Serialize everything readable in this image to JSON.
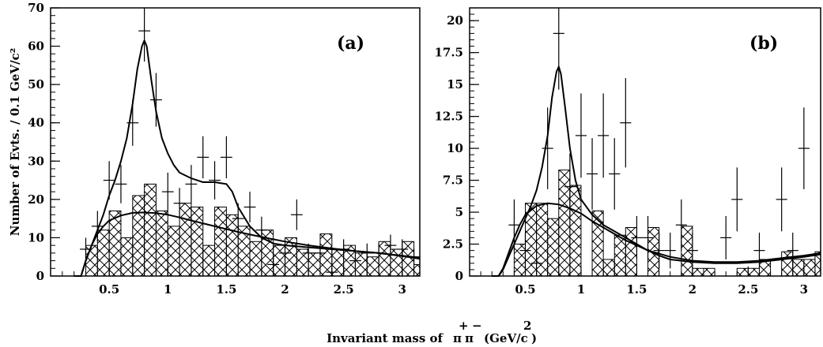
{
  "figure": {
    "ylabel": "Number of Evts. / 0.1 GeV/c²",
    "xlabel_prefix": "Invariant mass of",
    "xlabel_particle_plus": "+",
    "xlabel_particle_minus": "−",
    "xlabel_pi1": "π",
    "xlabel_pi2": "π",
    "xlabel_units": "(GeV/c",
    "xlabel_units_sup": "2",
    "xlabel_units_close": ")"
  },
  "chart_data": [
    {
      "type": "histogram",
      "panel_label": "(a)",
      "xlim": [
        0.0,
        3.15
      ],
      "ylim": [
        0,
        70
      ],
      "x_ticks": [
        "0.5",
        "1",
        "1.5",
        "2",
        "2.5",
        "3"
      ],
      "x_tick_values": [
        0.5,
        1,
        1.5,
        2,
        2.5,
        3
      ],
      "y_ticks": [
        "0",
        "10",
        "20",
        "30",
        "40",
        "50",
        "60",
        "70"
      ],
      "y_tick_values": [
        0,
        10,
        20,
        30,
        40,
        50,
        60,
        70
      ],
      "background_hist": {
        "bin_edges": [
          0.3,
          0.4,
          0.5,
          0.6,
          0.7,
          0.8,
          0.9,
          1.0,
          1.1,
          1.2,
          1.3,
          1.4,
          1.5,
          1.6,
          1.7,
          1.8,
          1.9,
          2.0,
          2.1,
          2.2,
          2.3,
          2.4,
          2.5,
          2.6,
          2.7,
          2.8,
          2.9,
          3.0,
          3.1,
          3.15
        ],
        "values": [
          8,
          12,
          17,
          10,
          21,
          24,
          17,
          13,
          19,
          18,
          8,
          18,
          16,
          13,
          9,
          12,
          8,
          10,
          7,
          6,
          11,
          7,
          8,
          6,
          5,
          9,
          7,
          9,
          3
        ]
      },
      "data_points": {
        "x": [
          0.3,
          0.4,
          0.5,
          0.6,
          0.7,
          0.8,
          0.9,
          1.0,
          1.1,
          1.2,
          1.3,
          1.4,
          1.5,
          1.6,
          1.7,
          1.8,
          1.9,
          2.0,
          2.1,
          2.2,
          2.3,
          2.4,
          2.5,
          2.6,
          2.7,
          2.8,
          2.9,
          3.0,
          3.1
        ],
        "y": [
          7,
          13,
          25,
          24,
          40,
          64,
          46,
          22,
          19,
          24,
          31,
          25,
          31,
          15,
          18,
          12,
          3,
          6,
          16,
          6,
          6,
          1,
          7,
          4,
          6,
          6,
          8,
          7,
          5
        ],
        "err": [
          3,
          4,
          5,
          5,
          6,
          8,
          7,
          5,
          4,
          5,
          5.5,
          5,
          5.5,
          4,
          4,
          3.5,
          2,
          2.5,
          4,
          2.5,
          2.5,
          1,
          2.6,
          2,
          2.5,
          2.5,
          2.8,
          2.6,
          2.2
        ]
      },
      "total_fit": {
        "x": [
          0.2,
          0.26,
          0.3,
          0.35,
          0.4,
          0.45,
          0.5,
          0.55,
          0.6,
          0.65,
          0.7,
          0.74,
          0.78,
          0.8,
          0.82,
          0.86,
          0.9,
          0.95,
          1.0,
          1.05,
          1.1,
          1.2,
          1.3,
          1.4,
          1.5,
          1.55,
          1.6,
          1.7,
          1.8,
          1.9,
          2.0,
          2.2,
          2.4,
          2.6,
          2.8,
          3.0,
          3.15
        ],
        "y": [
          0,
          0,
          4,
          8,
          12,
          16,
          21,
          25,
          30,
          36,
          45,
          54,
          60,
          61.5,
          60,
          51,
          43,
          36,
          32,
          29,
          27,
          25.5,
          24.5,
          24.5,
          24,
          22,
          18,
          13,
          10,
          8.5,
          8,
          7.5,
          7,
          6.5,
          6,
          5.2,
          4.5
        ]
      },
      "background_fit": {
        "x": [
          0.2,
          0.26,
          0.3,
          0.35,
          0.4,
          0.45,
          0.5,
          0.6,
          0.7,
          0.8,
          0.9,
          1.0,
          1.1,
          1.2,
          1.4,
          1.6,
          1.8,
          2.0,
          2.2,
          2.4,
          2.6,
          2.8,
          3.0,
          3.15
        ],
        "y": [
          0,
          0,
          4,
          8,
          11,
          13,
          14.5,
          15.8,
          16.5,
          16.6,
          16.4,
          16,
          15.3,
          14.5,
          13,
          11.5,
          10.2,
          9,
          8,
          7.2,
          6.5,
          6,
          5.3,
          4.8
        ]
      }
    },
    {
      "type": "histogram",
      "panel_label": "(b)",
      "xlim": [
        0.0,
        3.15
      ],
      "ylim": [
        0,
        21
      ],
      "x_ticks": [
        "0.5",
        "1",
        "1.5",
        "2",
        "2.5",
        "3"
      ],
      "x_tick_values": [
        0.5,
        1,
        1.5,
        2,
        2.5,
        3
      ],
      "y_ticks": [
        "0",
        "2.5",
        "5",
        "7.5",
        "10",
        "12.5",
        "15",
        "17.5",
        "20"
      ],
      "y_tick_values": [
        0,
        2.5,
        5,
        7.5,
        10,
        12.5,
        15,
        17.5,
        20
      ],
      "background_hist": {
        "bin_edges": [
          0.4,
          0.5,
          0.6,
          0.7,
          0.8,
          0.9,
          1.0,
          1.1,
          1.2,
          1.3,
          1.4,
          1.5,
          1.6,
          1.7,
          1.8,
          1.9,
          2.0,
          2.1,
          2.2,
          2.3,
          2.4,
          2.5,
          2.6,
          2.7,
          2.8,
          2.9,
          3.0,
          3.1,
          3.15
        ],
        "values": [
          2.5,
          5.7,
          5.7,
          4.5,
          8.3,
          7.1,
          0,
          5.1,
          1.3,
          3.2,
          3.8,
          0,
          3.8,
          0,
          0,
          3.9,
          0.6,
          0.6,
          0,
          0,
          0.6,
          0.6,
          1.3,
          0,
          1.9,
          1.3,
          1.3,
          1.9
        ]
      },
      "data_points": {
        "x": [
          0.4,
          0.5,
          0.6,
          0.7,
          0.8,
          0.9,
          1.0,
          1.1,
          1.2,
          1.3,
          1.4,
          1.5,
          1.6,
          1.7,
          1.8,
          1.9,
          2.0,
          2.3,
          2.4,
          2.6,
          2.8,
          2.9,
          3.0
        ],
        "y": [
          4,
          2,
          1,
          10,
          19,
          7,
          11,
          8,
          11,
          8,
          12,
          3,
          3,
          2,
          2,
          4,
          2,
          3,
          6,
          2,
          6,
          2,
          10
        ],
        "err": [
          2,
          1.4,
          1,
          3.2,
          4.4,
          2.6,
          3.3,
          2.8,
          3.3,
          2.8,
          3.5,
          1.7,
          1.7,
          1.4,
          1.4,
          2,
          1.4,
          1.7,
          2.5,
          1.4,
          2.5,
          1.4,
          3.2
        ]
      },
      "total_fit": {
        "x": [
          0.2,
          0.26,
          0.3,
          0.35,
          0.4,
          0.45,
          0.5,
          0.55,
          0.6,
          0.65,
          0.7,
          0.74,
          0.78,
          0.8,
          0.82,
          0.86,
          0.9,
          0.95,
          1.0,
          1.1,
          1.2,
          1.3,
          1.4,
          1.5,
          1.6,
          1.7,
          1.8,
          2.0,
          2.2,
          2.4,
          2.6,
          2.8,
          3.0,
          3.15
        ],
        "y": [
          0,
          0,
          0.5,
          1.5,
          2.5,
          3.5,
          4.5,
          5.5,
          6.7,
          8.5,
          11,
          14,
          16,
          16.4,
          15.8,
          13,
          10,
          7.5,
          6,
          4.8,
          4,
          3.5,
          3,
          2.5,
          2,
          1.6,
          1.3,
          1.1,
          1.0,
          1.0,
          1.1,
          1.3,
          1.5,
          1.7
        ]
      },
      "background_fit": {
        "x": [
          0.2,
          0.26,
          0.3,
          0.35,
          0.4,
          0.45,
          0.5,
          0.6,
          0.7,
          0.8,
          0.9,
          1.0,
          1.1,
          1.2,
          1.3,
          1.4,
          1.5,
          1.6,
          1.8,
          2.0,
          2.2,
          2.4,
          2.6,
          2.8,
          3.0,
          3.15
        ],
        "y": [
          0,
          0,
          0.6,
          1.8,
          3,
          4,
          4.8,
          5.5,
          5.7,
          5.6,
          5.3,
          4.9,
          4.3,
          3.8,
          3.3,
          2.8,
          2.4,
          2.0,
          1.5,
          1.2,
          1.1,
          1.1,
          1.2,
          1.4,
          1.6,
          1.8
        ]
      }
    }
  ]
}
